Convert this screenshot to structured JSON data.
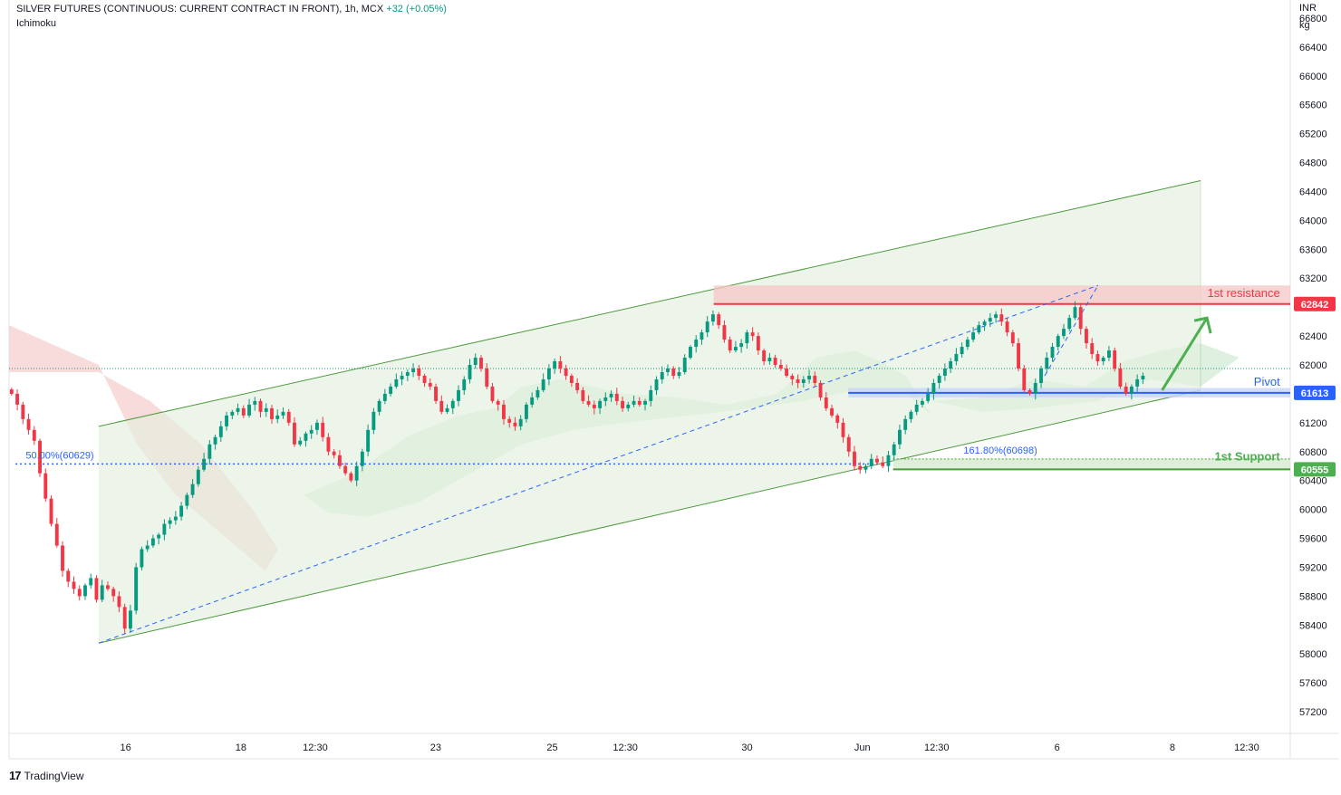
{
  "header": {
    "symbol": "SILVER FUTURES (CONTINUOUS: CURRENT CONTRACT IN FRONT), 1h, MCX",
    "change": "+32 (+0.05%)",
    "indicator": "Ichimoku"
  },
  "footer": {
    "brand": "TradingView",
    "logo_glyph": "17"
  },
  "price_axis": {
    "currency": "INR",
    "unit": "kg",
    "ticks": [
      "66800",
      "66400",
      "66000",
      "65600",
      "65200",
      "64800",
      "64400",
      "64000",
      "63600",
      "63200",
      "62800",
      "62400",
      "62000",
      "61600",
      "61200",
      "60800",
      "60400",
      "60000",
      "59600",
      "59200",
      "58800",
      "58400",
      "58000",
      "57600",
      "57200"
    ]
  },
  "time_axis": {
    "ticks": [
      "16",
      "18",
      "12:30",
      "23",
      "25",
      "12:30",
      "30",
      "Jun",
      "12:30",
      "6",
      "8",
      "12:30"
    ]
  },
  "colors": {
    "up": "#089981",
    "down": "#f23645",
    "channel_line": "#4c9a3c",
    "channel_fill": "#e3f0df",
    "resistance": "#f23645",
    "resistance_zone": "#f5c6c6",
    "pivot": "#2962ff",
    "pivot_zone": "#c7d5fb",
    "support": "#4c9a3c",
    "fib": "#2962ff",
    "arrow": "#4caf50",
    "cloud_bull": "#c8e6c9",
    "cloud_bear": "#f5cfcf"
  },
  "chart_data": {
    "type": "candlestick",
    "y_axis": {
      "min": 56900,
      "max": 67050,
      "scale": "linear",
      "label": "INR kg"
    },
    "x_axis": {
      "ticks": [
        "16",
        "18",
        "12:30",
        "23",
        "25",
        "12:30",
        "30",
        "Jun",
        "12:30",
        "6",
        "8",
        "12:30"
      ]
    },
    "price_close": [
      61600,
      61450,
      61250,
      61100,
      60950,
      60500,
      60150,
      59800,
      59500,
      59150,
      59000,
      58900,
      58800,
      58950,
      59050,
      58750,
      58950,
      58900,
      58800,
      58650,
      58350,
      58600,
      59200,
      59450,
      59500,
      59600,
      59650,
      59800,
      59850,
      59900,
      60050,
      60200,
      60350,
      60550,
      60700,
      60900,
      61000,
      61150,
      61300,
      61350,
      61400,
      61300,
      61450,
      61500,
      61350,
      61400,
      61250,
      61300,
      61350,
      61200,
      60900,
      60950,
      61050,
      61100,
      61200,
      61000,
      60800,
      60750,
      60600,
      60500,
      60400,
      60600,
      60800,
      61100,
      61350,
      61500,
      61600,
      61700,
      61800,
      61850,
      61900,
      61950,
      61850,
      61750,
      61700,
      61500,
      61350,
      61400,
      61500,
      61650,
      61800,
      62000,
      62100,
      61950,
      61700,
      61500,
      61450,
      61250,
      61200,
      61150,
      61250,
      61450,
      61550,
      61650,
      61800,
      61950,
      62050,
      61950,
      61850,
      61750,
      61650,
      61500,
      61450,
      61400,
      61500,
      61550,
      61600,
      61500,
      61400,
      61450,
      61500,
      61450,
      61500,
      61650,
      61800,
      61900,
      61950,
      61850,
      61900,
      62100,
      62250,
      62350,
      62450,
      62600,
      62700,
      62550,
      62350,
      62200,
      62250,
      62300,
      62450,
      62400,
      62200,
      62050,
      62100,
      62000,
      61950,
      61850,
      61800,
      61750,
      61800,
      61850,
      61750,
      61550,
      61400,
      61300,
      61200,
      61000,
      60800,
      60600,
      60550,
      60600,
      60700,
      60650,
      60600,
      60750,
      60900,
      61100,
      61250,
      61350,
      61450,
      61500,
      61600,
      61750,
      61850,
      61950,
      62050,
      62150,
      62250,
      62350,
      62450,
      62550,
      62600,
      62650,
      62700,
      62600,
      62450,
      62300,
      61950,
      61650,
      61600,
      61750,
      61950,
      62100,
      62250,
      62400,
      62500,
      62650,
      62800,
      62500,
      62300,
      62150,
      62050,
      62100,
      62200,
      61950,
      61700,
      61600,
      61700,
      61800,
      61850
    ],
    "levels": [
      {
        "name": "1st resistance",
        "value": 62842,
        "label": "62842"
      },
      {
        "name": "Pivot",
        "value": 61613,
        "label": "61613"
      },
      {
        "name": "1st Support",
        "value": 60555,
        "label": "60555"
      }
    ],
    "fibonacci": [
      {
        "label": "50.00%(60629)",
        "value": 60629
      },
      {
        "label": "161.80%(60698)",
        "value": 60698
      }
    ],
    "last_price_dotted": 61950,
    "channel": {
      "lower": {
        "x0": 0.07,
        "y0": 58150,
        "x1": 0.93,
        "y1": 61650
      },
      "upper": {
        "x0": 0.07,
        "y0": 61150,
        "x1": 0.93,
        "y1": 64550
      }
    },
    "resistance_zone": {
      "from": 62842,
      "to": 63100
    },
    "pivot_zone": {
      "from": 61550,
      "to": 61680
    },
    "grid": false,
    "legend": "none"
  }
}
